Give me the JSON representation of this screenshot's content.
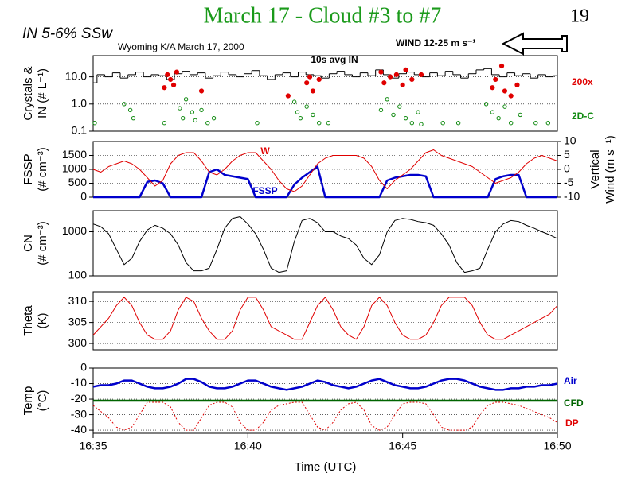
{
  "slide": {
    "title": "March 17 - Cloud #3 to #7",
    "page_number": 19,
    "subtitle": "IN 5-6% SSw",
    "source": "Wyoming K/A March 17, 2000",
    "wind": "WIND 12-25 m s⁻¹"
  },
  "chart_data": [
    {
      "type": "scatter",
      "ylabel": [
        "Crystals &",
        "IN (# L⁻¹)"
      ],
      "yscale": "log",
      "grid": true,
      "xlim": [
        35,
        50
      ],
      "ylim": [
        0.1,
        60
      ],
      "yticks": [
        0.1,
        {
          "value": 1,
          "label": "1.0"
        },
        {
          "value": 10,
          "label": "10.0"
        }
      ],
      "x": [
        35,
        35.25,
        35.5,
        35.75,
        36,
        36.25,
        36.5,
        36.75,
        37,
        37.25,
        37.5,
        37.75,
        38,
        38.25,
        38.5,
        38.75,
        39,
        39.25,
        39.5,
        39.75,
        40,
        40.25,
        40.5,
        40.75,
        41,
        41.25,
        41.5,
        41.75,
        42,
        42.25,
        42.5,
        42.75,
        43,
        43.25,
        43.5,
        43.75,
        44,
        44.25,
        44.5,
        44.75,
        45,
        45.25,
        45.5,
        45.75,
        46,
        46.25,
        46.5,
        46.75,
        47,
        47.25,
        47.5,
        47.75,
        48,
        48.25,
        48.5,
        48.75,
        49,
        49.25,
        49.5,
        49.75,
        50
      ],
      "series": [
        {
          "name": "10s avg IN",
          "type": "step",
          "color": "#000000",
          "values": [
            6,
            12,
            10,
            14,
            9,
            12,
            15,
            10,
            12,
            11,
            8,
            13,
            16,
            12,
            14,
            9,
            11,
            15,
            12,
            10,
            13,
            17,
            11,
            8,
            12,
            14,
            10,
            15,
            12,
            11,
            9,
            13,
            16,
            12,
            10,
            14,
            11,
            18,
            12,
            9,
            13,
            15,
            12,
            10,
            14,
            11,
            16,
            12,
            9,
            13,
            18,
            20,
            12,
            10,
            14,
            11,
            13,
            9,
            12,
            10,
            11
          ]
        },
        {
          "name": "200x",
          "type": "scatter",
          "color": "#e00000",
          "marker": "filled",
          "x": [
            37.3,
            37.4,
            37.5,
            37.6,
            37.7,
            38.5,
            41.3,
            41.9,
            42,
            42.1,
            42.3,
            44.3,
            44.4,
            44.6,
            44.8,
            45,
            45.1,
            45.3,
            45.6,
            47.9,
            48,
            48.2,
            48.3,
            48.5,
            48.7
          ],
          "values": [
            4,
            12,
            8,
            5,
            15,
            3,
            2,
            6,
            10,
            3,
            8,
            15,
            6,
            10,
            12,
            5,
            18,
            8,
            12,
            4,
            8,
            25,
            3,
            2,
            5
          ]
        },
        {
          "name": "2D-C",
          "type": "scatter",
          "color": "#108a10",
          "marker": "open",
          "x": [
            35.05,
            36,
            36.2,
            36.3,
            37.3,
            37.8,
            37.9,
            38,
            38.2,
            38.3,
            38.5,
            38.7,
            38.9,
            40.3,
            41.5,
            41.6,
            41.7,
            41.9,
            42.1,
            42.3,
            42.6,
            44.3,
            44.5,
            44.7,
            44.9,
            45.1,
            45.3,
            45.5,
            45.6,
            46.3,
            46.8,
            47.7,
            47.9,
            48.1,
            48.3,
            48.5,
            48.8,
            49.3,
            49.7
          ],
          "values": [
            0.2,
            1,
            0.6,
            0.3,
            0.2,
            0.7,
            0.3,
            1.5,
            0.5,
            0.25,
            0.6,
            0.2,
            0.3,
            0.2,
            1.2,
            0.5,
            0.3,
            0.8,
            0.4,
            0.2,
            0.2,
            0.6,
            1.5,
            0.4,
            0.8,
            0.3,
            0.2,
            0.5,
            0.18,
            0.2,
            0.2,
            1,
            0.5,
            0.3,
            0.8,
            0.2,
            0.4,
            0.2,
            0.2
          ]
        }
      ]
    },
    {
      "type": "line",
      "ylabel": [
        "FSSP",
        "(# cm⁻³)"
      ],
      "y2label": [
        "Vertical",
        "Wind (m s⁻¹)"
      ],
      "grid": true,
      "xlim": [
        35,
        50
      ],
      "ylim": [
        0,
        2000
      ],
      "yticks": [
        0,
        500,
        1000,
        1500
      ],
      "y2lim": [
        -10,
        10
      ],
      "y2ticks": [
        -10,
        -5,
        0,
        5,
        10
      ],
      "x": [
        35,
        35.25,
        35.5,
        35.75,
        36,
        36.25,
        36.5,
        36.75,
        37,
        37.25,
        37.5,
        37.75,
        38,
        38.25,
        38.5,
        38.75,
        39,
        39.25,
        39.5,
        39.75,
        40,
        40.25,
        40.5,
        40.75,
        41,
        41.25,
        41.5,
        41.75,
        42,
        42.25,
        42.5,
        42.75,
        43,
        43.25,
        43.5,
        43.75,
        44,
        44.25,
        44.5,
        44.75,
        45,
        45.25,
        45.5,
        45.75,
        46,
        46.25,
        46.5,
        46.75,
        47,
        47.25,
        47.5,
        47.75,
        48,
        48.25,
        48.5,
        48.75,
        49,
        49.25,
        49.5,
        49.75,
        50
      ],
      "series": [
        {
          "name": "FSSP",
          "color": "#0000cc",
          "style": "thick",
          "values": [
            0,
            0,
            0,
            0,
            0,
            0,
            0,
            550,
            600,
            500,
            0,
            0,
            0,
            0,
            0,
            900,
            1000,
            800,
            750,
            700,
            650,
            0,
            0,
            0,
            0,
            0,
            450,
            700,
            900,
            1100,
            0,
            0,
            0,
            0,
            0,
            0,
            0,
            0,
            600,
            700,
            750,
            800,
            800,
            750,
            0,
            0,
            0,
            0,
            0,
            0,
            0,
            0,
            650,
            750,
            800,
            800,
            0,
            0,
            0,
            0,
            0
          ]
        },
        {
          "name": "W",
          "axis": "y2",
          "color": "#e00000",
          "values": [
            0,
            -1,
            1,
            2,
            3,
            2,
            0,
            -3,
            -6,
            -4,
            2,
            5,
            6,
            6,
            3,
            -1,
            -2,
            0,
            3,
            5,
            6,
            6,
            3,
            0,
            -4,
            -7,
            -8,
            -6,
            -2,
            2,
            4,
            5,
            5,
            5,
            5,
            4,
            1,
            -4,
            -7,
            -4,
            -2,
            0,
            3,
            6,
            7,
            5,
            4,
            3,
            2,
            1,
            -1,
            -3,
            -5,
            -4,
            -3,
            -1,
            2,
            4,
            5,
            4,
            3
          ]
        }
      ]
    },
    {
      "type": "line",
      "ylabel": [
        "CN",
        "(# cm⁻³)"
      ],
      "yscale": "log",
      "grid": true,
      "xlim": [
        35,
        50
      ],
      "ylim": [
        100,
        3000
      ],
      "yticks": [
        100,
        1000
      ],
      "x": [
        35,
        35.25,
        35.5,
        35.75,
        36,
        36.25,
        36.5,
        36.75,
        37,
        37.25,
        37.5,
        37.75,
        38,
        38.25,
        38.5,
        38.75,
        39,
        39.25,
        39.5,
        39.75,
        40,
        40.25,
        40.5,
        40.75,
        41,
        41.25,
        41.5,
        41.75,
        42,
        42.25,
        42.5,
        42.75,
        43,
        43.25,
        43.5,
        43.75,
        44,
        44.25,
        44.5,
        44.75,
        45,
        45.25,
        45.5,
        45.75,
        46,
        46.25,
        46.5,
        46.75,
        47,
        47.25,
        47.5,
        47.75,
        48,
        48.25,
        48.5,
        48.75,
        49,
        49.25,
        49.5,
        49.75,
        50
      ],
      "series": [
        {
          "color": "#000000",
          "values": [
            1500,
            1300,
            900,
            400,
            180,
            250,
            600,
            1100,
            1400,
            1200,
            900,
            500,
            200,
            130,
            130,
            150,
            400,
            1200,
            2000,
            2200,
            1500,
            900,
            400,
            150,
            120,
            130,
            600,
            1800,
            2000,
            1600,
            1000,
            1000,
            800,
            700,
            500,
            250,
            180,
            300,
            1000,
            1800,
            2000,
            1900,
            1700,
            1600,
            1400,
            900,
            500,
            200,
            120,
            130,
            150,
            400,
            1000,
            1500,
            1800,
            1700,
            1400,
            1200,
            1000,
            850,
            700
          ]
        }
      ]
    },
    {
      "type": "line",
      "ylabel": [
        "Theta",
        "(K)"
      ],
      "grid": true,
      "xlim": [
        35,
        50
      ],
      "ylim": [
        298.5,
        312.3
      ],
      "yticks": [
        300,
        305,
        310
      ],
      "x": [
        35,
        35.25,
        35.5,
        35.75,
        36,
        36.25,
        36.5,
        36.75,
        37,
        37.25,
        37.5,
        37.75,
        38,
        38.25,
        38.5,
        38.75,
        39,
        39.25,
        39.5,
        39.75,
        40,
        40.25,
        40.5,
        40.75,
        41,
        41.25,
        41.5,
        41.75,
        42,
        42.25,
        42.5,
        42.75,
        43,
        43.25,
        43.5,
        43.75,
        44,
        44.25,
        44.5,
        44.75,
        45,
        45.25,
        45.5,
        45.75,
        46,
        46.25,
        46.5,
        46.75,
        47,
        47.25,
        47.5,
        47.75,
        48,
        48.25,
        48.5,
        48.75,
        49,
        49.25,
        49.5,
        49.75,
        50
      ],
      "series": [
        {
          "color": "#e00000",
          "values": [
            302,
            304,
            306,
            309,
            311,
            309,
            305,
            302,
            301,
            301,
            303,
            308,
            311,
            310,
            306,
            303,
            301,
            301,
            303,
            308,
            311,
            311,
            308,
            304,
            303,
            302,
            301,
            301,
            305,
            309,
            311,
            308,
            304,
            302,
            301,
            304,
            309,
            311,
            309,
            305,
            302,
            301,
            301,
            302,
            305,
            309,
            311,
            311,
            311,
            309,
            305,
            302,
            301,
            301,
            302,
            303,
            304,
            305,
            306,
            307,
            309
          ]
        }
      ]
    },
    {
      "type": "line",
      "ylabel": [
        "Temp",
        "(°C)"
      ],
      "xlabel": "Time (UTC)",
      "grid": true,
      "xlim": [
        35,
        50
      ],
      "ylim": [
        -42,
        0
      ],
      "yticks": [
        0,
        -10,
        -20,
        -30,
        -40
      ],
      "xticks": [
        {
          "value": 35,
          "label": "16:35"
        },
        {
          "value": 40,
          "label": "16:40"
        },
        {
          "value": 45,
          "label": "16:45"
        },
        {
          "value": 50,
          "label": "16:50"
        }
      ],
      "x": [
        35,
        35.25,
        35.5,
        35.75,
        36,
        36.25,
        36.5,
        36.75,
        37,
        37.25,
        37.5,
        37.75,
        38,
        38.25,
        38.5,
        38.75,
        39,
        39.25,
        39.5,
        39.75,
        40,
        40.25,
        40.5,
        40.75,
        41,
        41.25,
        41.5,
        41.75,
        42,
        42.25,
        42.5,
        42.75,
        43,
        43.25,
        43.5,
        43.75,
        44,
        44.25,
        44.5,
        44.75,
        45,
        45.25,
        45.5,
        45.75,
        46,
        46.25,
        46.5,
        46.75,
        47,
        47.25,
        47.5,
        47.75,
        48,
        48.25,
        48.5,
        48.75,
        49,
        49.25,
        49.5,
        49.75,
        50
      ],
      "series": [
        {
          "name": "Air",
          "color": "#0000cc",
          "style": "thick",
          "values": [
            -12,
            -11,
            -11,
            -10,
            -8,
            -8,
            -10,
            -12,
            -13,
            -13,
            -12,
            -10,
            -7,
            -7,
            -9,
            -12,
            -13,
            -13,
            -12,
            -10,
            -8,
            -8,
            -10,
            -12,
            -13,
            -14,
            -13,
            -12,
            -10,
            -8,
            -9,
            -11,
            -12,
            -13,
            -12,
            -10,
            -8,
            -7,
            -9,
            -11,
            -12,
            -13,
            -13,
            -12,
            -10,
            -8,
            -7,
            -7,
            -8,
            -10,
            -12,
            -13,
            -14,
            -14,
            -13,
            -13,
            -12,
            -12,
            -11,
            -11,
            -10
          ]
        },
        {
          "name": "CFD",
          "color": "#006400",
          "style": "thick",
          "values": [
            -21,
            -21,
            -21,
            -21,
            -21,
            -21,
            -21,
            -21,
            -21,
            -21,
            -21,
            -21,
            -21,
            -21,
            -21,
            -21,
            -21,
            -21,
            -21,
            -21,
            -21,
            -21,
            -21,
            -21,
            -21,
            -21,
            -21,
            -21,
            -21,
            -21,
            -21,
            -21,
            -21,
            -21,
            -21,
            -21,
            -21,
            -21,
            -21,
            -21,
            -21,
            -21,
            -21,
            -21,
            -21,
            -21,
            -21,
            -21,
            -21,
            -21,
            -21,
            -21,
            -21,
            -21,
            -21,
            -21,
            -21,
            -21,
            -21,
            -21,
            -21
          ]
        },
        {
          "name": "DP",
          "color": "#e00000",
          "style": "dotted",
          "values": [
            -24,
            -28,
            -32,
            -38,
            -40,
            -38,
            -30,
            -22,
            -22,
            -22,
            -25,
            -35,
            -40,
            -40,
            -32,
            -24,
            -22,
            -22,
            -25,
            -35,
            -40,
            -40,
            -35,
            -27,
            -24,
            -23,
            -22,
            -22,
            -30,
            -38,
            -40,
            -35,
            -27,
            -23,
            -22,
            -27,
            -37,
            -40,
            -38,
            -30,
            -23,
            -22,
            -22,
            -23,
            -30,
            -38,
            -40,
            -40,
            -40,
            -38,
            -30,
            -24,
            -22,
            -22,
            -23,
            -24,
            -26,
            -28,
            -30,
            -32,
            -35
          ]
        }
      ]
    }
  ]
}
